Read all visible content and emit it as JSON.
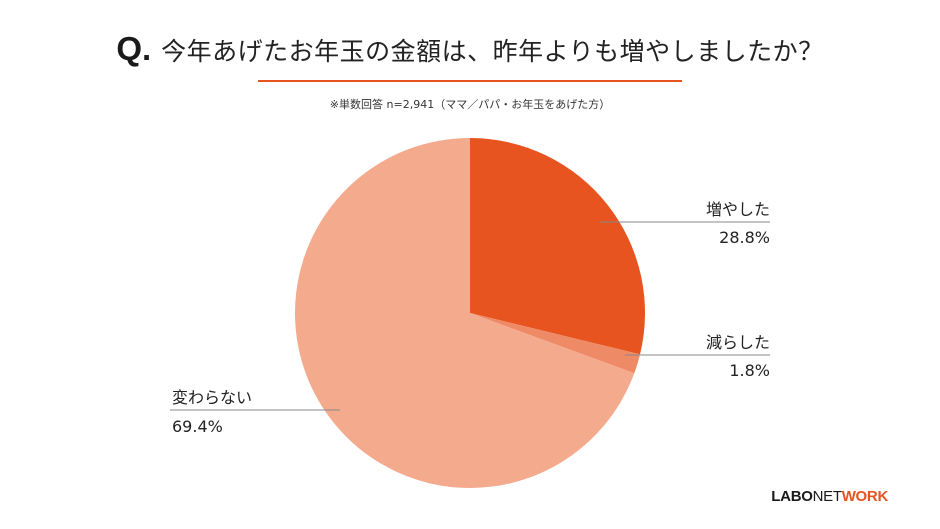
{
  "header": {
    "q_mark": "Q.",
    "title": "今年あげたお年玉の金額は、昨年よりも増やしましたか？",
    "note": "※単数回答 n=2,941（ママ／パパ・お年玉をあげた方）",
    "rule_color": "#e8541f"
  },
  "brand": {
    "part1": "LABO",
    "part2": "NET",
    "part3": "WORK"
  },
  "chart_data": {
    "type": "pie",
    "title": "今年あげたお年玉の金額は、昨年よりも増やしましたか？",
    "start_angle_deg": 0,
    "direction": "clockwise",
    "slices": [
      {
        "label": "増やした",
        "value": 28.8,
        "display": "28.8%",
        "color": "#e8541f"
      },
      {
        "label": "減らした",
        "value": 1.8,
        "display": "1.8%",
        "color": "#ef8a66"
      },
      {
        "label": "変わらない",
        "value": 69.4,
        "display": "69.4%",
        "color": "#f4aa8d"
      }
    ],
    "label_line_color": "#888888"
  }
}
